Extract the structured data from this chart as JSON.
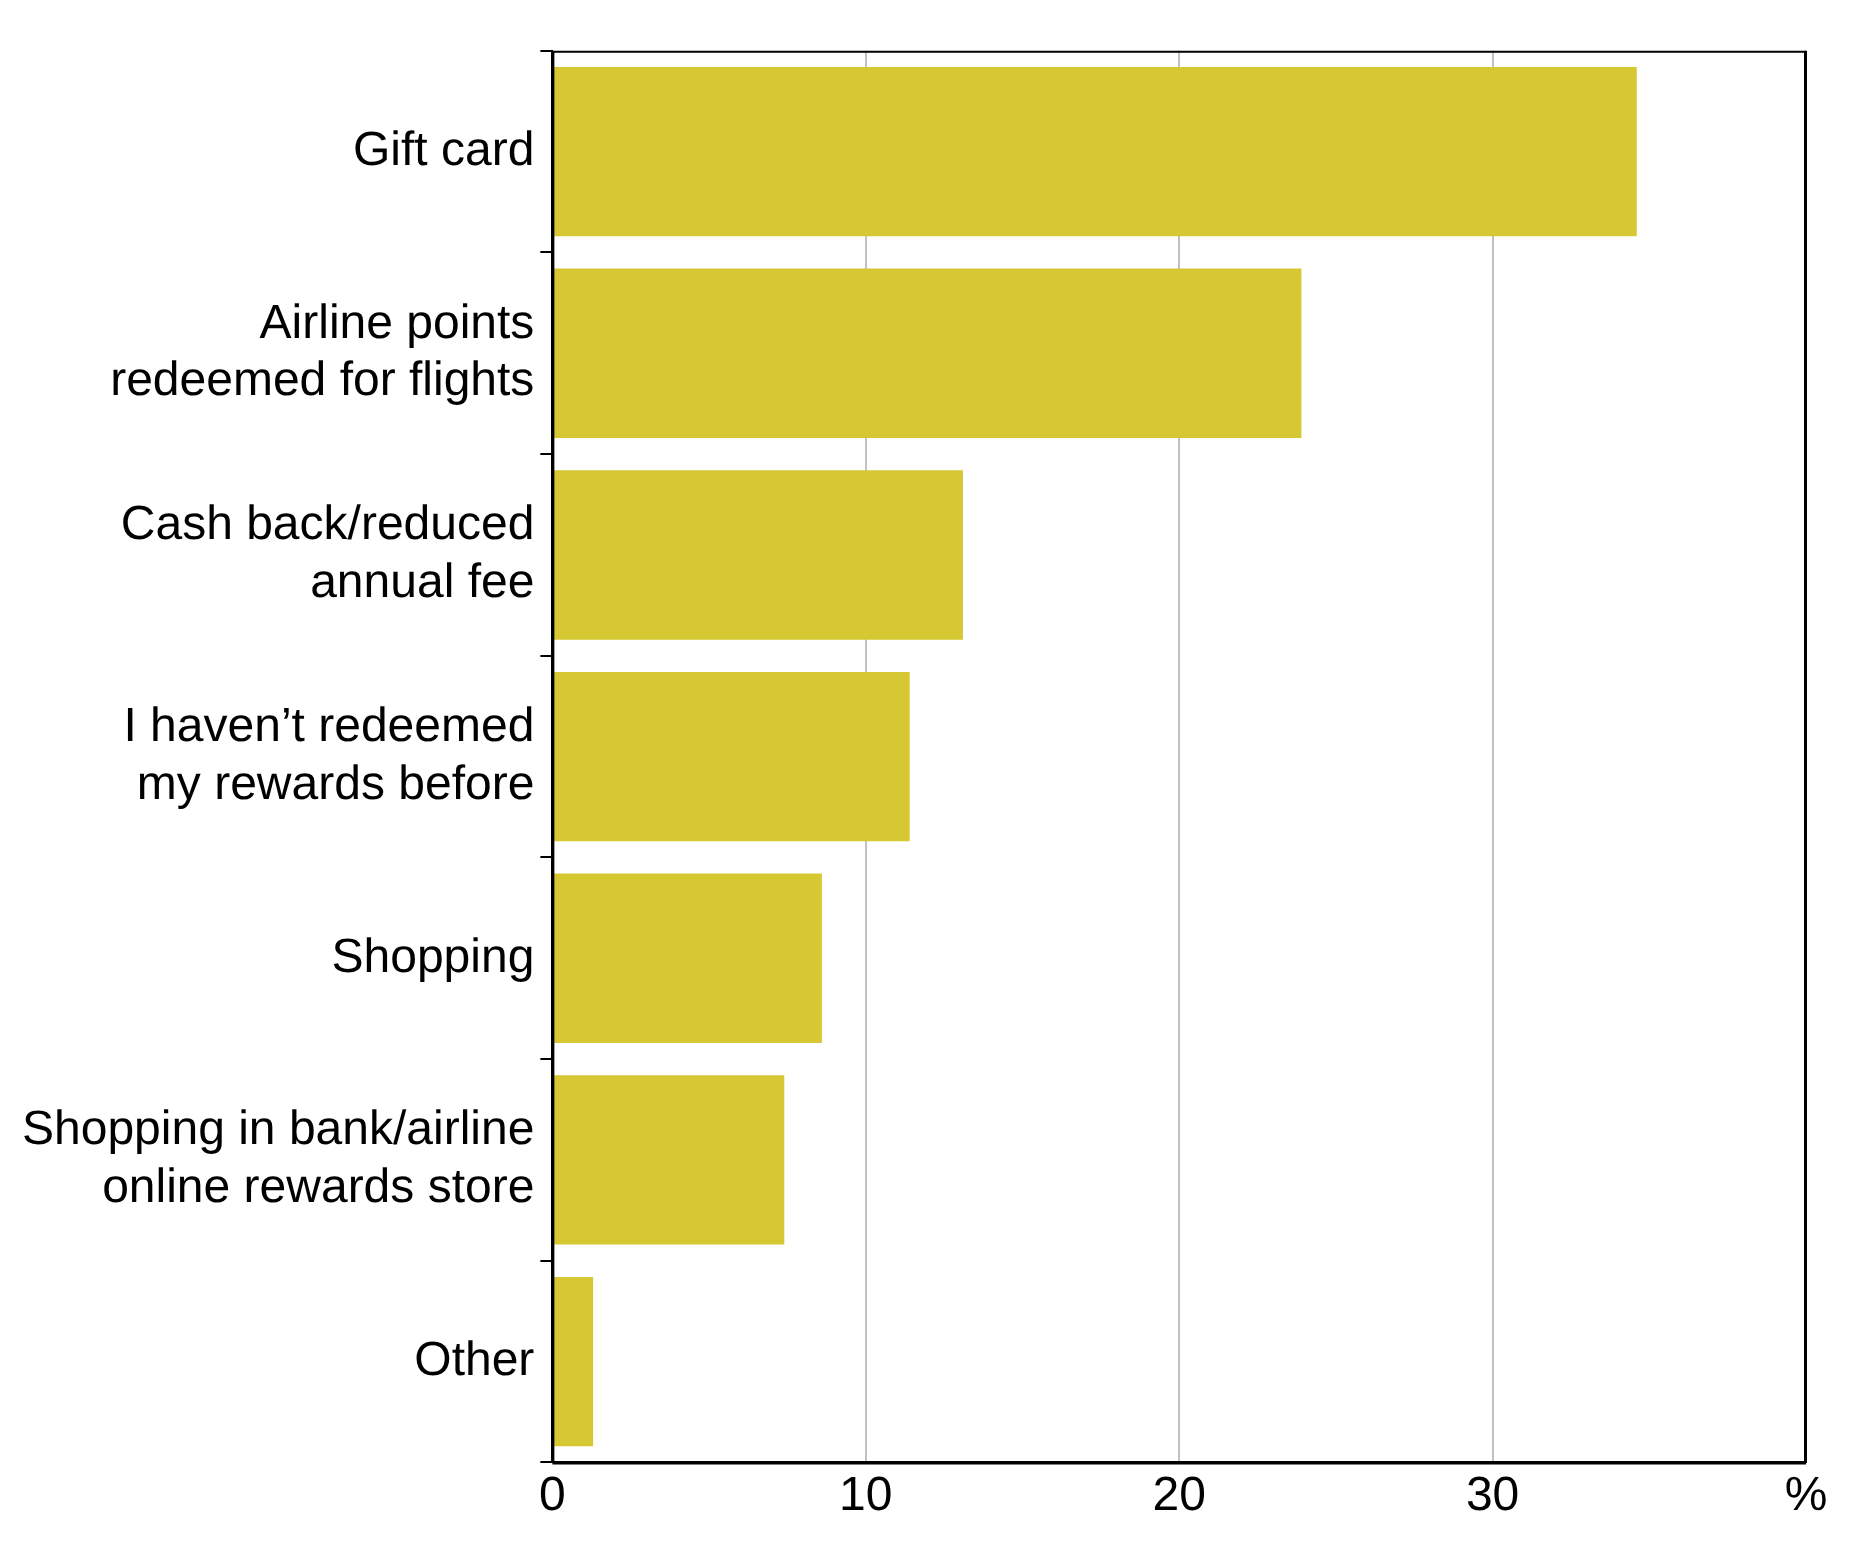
{
  "chart_data": {
    "type": "bar",
    "orientation": "horizontal",
    "categories": [
      "Gift card",
      "Airline points\nredeemed for flights",
      "Cash back/reduced\nannual fee",
      "I haven’t redeemed\nmy rewards before",
      "Shopping",
      "Shopping in bank/airline\nonline rewards store",
      "Other"
    ],
    "values": [
      34.6,
      23.9,
      13.1,
      11.4,
      8.6,
      7.4,
      1.3
    ],
    "color": "#d6c832",
    "xlim": [
      0,
      40
    ],
    "xticks": [
      0,
      10,
      20,
      30,
      {
        "value": 40,
        "label": "%"
      }
    ],
    "grid": "x",
    "legend": false
  }
}
